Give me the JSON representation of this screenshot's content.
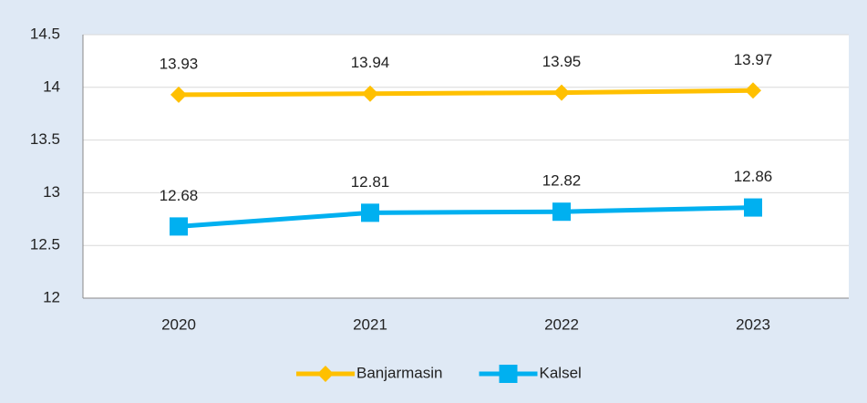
{
  "chart_data": {
    "type": "line",
    "categories": [
      "2020",
      "2021",
      "2022",
      "2023"
    ],
    "series": [
      {
        "name": "Banjarmasin",
        "color": "#ffc000",
        "marker": "diamond",
        "values": [
          13.93,
          13.94,
          13.95,
          13.97
        ]
      },
      {
        "name": "Kalsel",
        "color": "#00b0f0",
        "marker": "square",
        "values": [
          12.68,
          12.81,
          12.82,
          12.86
        ]
      }
    ],
    "ylim": [
      12,
      14.5
    ],
    "yticks": [
      12,
      12.5,
      13,
      13.5,
      14,
      14.5
    ],
    "grid": true,
    "legend": "bottom"
  }
}
